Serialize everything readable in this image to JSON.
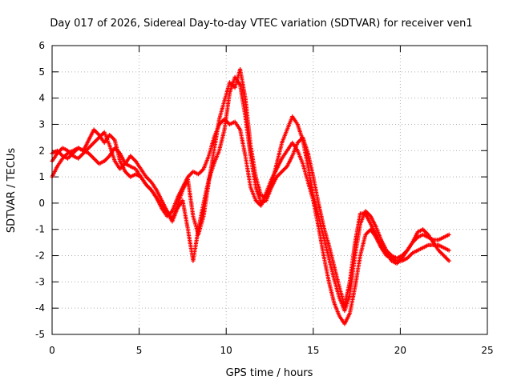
{
  "chart_data": {
    "type": "scatter",
    "title": "Day 017 of 2026, Sidereal Day-to-day VTEC variation (SDTVAR) for receiver ven1",
    "xlabel": "GPS time / hours",
    "ylabel": "SDTVAR / TECUs",
    "xlim": [
      0,
      25
    ],
    "ylim": [
      -5,
      6
    ],
    "xticks": [
      0,
      5,
      10,
      15,
      20,
      25
    ],
    "yticks": [
      -5,
      -4,
      -3,
      -2,
      -1,
      0,
      1,
      2,
      3,
      4,
      5,
      6
    ],
    "grid": true,
    "marker": "+",
    "color": "#ff0000",
    "series": [
      {
        "x": [
          0.0,
          0.3,
          0.6,
          0.9,
          1.2,
          1.5,
          1.8,
          2.1,
          2.4,
          2.7,
          3.0,
          3.3,
          3.6,
          3.9,
          4.2,
          4.5,
          4.8,
          5.1,
          5.4,
          5.7,
          6.0,
          6.3,
          6.6,
          6.9,
          7.2,
          7.5,
          7.8,
          8.1,
          8.4,
          8.7,
          9.0,
          9.3,
          9.6,
          9.9,
          10.2,
          10.5,
          10.8,
          11.1,
          11.4,
          11.7,
          12.0,
          12.3,
          12.6,
          12.9,
          13.2,
          13.5,
          13.8,
          14.1,
          14.4,
          14.7,
          15.0,
          15.3,
          15.6,
          15.9,
          16.2,
          16.5,
          16.8,
          17.1,
          17.4,
          17.7,
          18.0,
          18.3,
          18.6,
          18.9,
          19.2,
          19.5,
          19.8,
          20.1,
          20.4,
          20.7,
          21.0,
          21.3,
          21.6,
          21.9,
          22.2,
          22.5,
          22.8
        ],
        "y": [
          1.0,
          1.4,
          1.7,
          1.9,
          2.0,
          2.1,
          2.0,
          2.4,
          2.8,
          2.6,
          2.3,
          2.6,
          2.4,
          1.6,
          1.2,
          1.0,
          1.1,
          1.0,
          0.7,
          0.5,
          0.2,
          -0.2,
          -0.5,
          -0.3,
          0.2,
          0.6,
          1.0,
          1.2,
          1.1,
          1.3,
          1.8,
          2.5,
          3.0,
          3.2,
          3.0,
          3.1,
          2.8,
          1.8,
          0.6,
          0.1,
          -0.1,
          0.4,
          0.9,
          1.3,
          1.7,
          2.0,
          2.3,
          2.0,
          1.5,
          0.8,
          0.1,
          -0.9,
          -2.0,
          -3.0,
          -3.8,
          -4.3,
          -4.6,
          -4.2,
          -3.2,
          -2.0,
          -1.2,
          -1.0,
          -1.3,
          -1.7,
          -2.0,
          -2.1,
          -2.2,
          -2.2,
          -2.1,
          -1.9,
          -1.8,
          -1.7,
          -1.6,
          -1.6,
          -1.6,
          -1.7,
          -1.8
        ]
      },
      {
        "x": [
          0.0,
          0.3,
          0.6,
          0.9,
          1.2,
          1.5,
          1.8,
          2.1,
          2.4,
          2.7,
          3.0,
          3.3,
          3.6,
          3.9,
          4.2,
          4.5,
          4.8,
          5.1,
          5.4,
          5.7,
          6.0,
          6.3,
          6.6,
          6.9,
          7.2,
          7.5,
          7.8,
          8.1,
          8.4,
          8.7,
          9.0,
          9.3,
          9.6,
          9.9,
          10.2,
          10.5,
          10.8,
          11.1,
          11.4,
          11.7,
          12.0,
          12.3,
          12.6,
          12.9,
          13.2,
          13.5,
          13.8,
          14.1,
          14.4,
          14.7,
          15.0,
          15.3,
          15.6,
          15.9,
          16.2,
          16.5,
          16.8,
          17.1,
          17.4,
          17.7,
          18.0,
          18.3,
          18.6,
          18.9,
          19.2,
          19.5,
          19.8,
          20.1,
          20.4,
          20.7,
          21.0,
          21.3,
          21.6,
          21.9,
          22.2,
          22.5,
          22.8
        ],
        "y": [
          1.6,
          1.9,
          2.1,
          2.0,
          1.8,
          1.7,
          1.9,
          2.1,
          2.3,
          2.5,
          2.7,
          2.2,
          1.6,
          1.3,
          1.5,
          1.8,
          1.6,
          1.3,
          1.0,
          0.8,
          0.5,
          0.1,
          -0.3,
          -0.6,
          -0.1,
          0.5,
          0.9,
          -0.5,
          -1.2,
          -0.5,
          0.8,
          2.0,
          3.2,
          3.9,
          4.6,
          4.4,
          5.1,
          4.0,
          2.2,
          1.0,
          0.3,
          0.2,
          0.7,
          1.5,
          2.3,
          2.8,
          3.3,
          3.0,
          2.4,
          1.4,
          0.3,
          -0.5,
          -1.3,
          -2.1,
          -2.9,
          -3.6,
          -4.1,
          -3.5,
          -2.0,
          -0.8,
          -0.3,
          -0.5,
          -0.9,
          -1.4,
          -1.8,
          -2.0,
          -2.1,
          -2.0,
          -1.8,
          -1.5,
          -1.3,
          -1.2,
          -1.3,
          -1.4,
          -1.4,
          -1.3,
          -1.2
        ]
      },
      {
        "x": [
          0.0,
          0.3,
          0.6,
          0.9,
          1.2,
          1.5,
          1.8,
          2.1,
          2.4,
          2.7,
          3.0,
          3.3,
          3.6,
          3.9,
          4.2,
          4.5,
          4.8,
          5.1,
          5.4,
          5.7,
          6.0,
          6.3,
          6.6,
          6.9,
          7.2,
          7.5,
          7.8,
          8.1,
          8.4,
          8.7,
          9.0,
          9.3,
          9.6,
          9.9,
          10.2,
          10.5,
          10.8,
          11.1,
          11.4,
          11.7,
          12.0,
          12.3,
          12.6,
          12.9,
          13.2,
          13.5,
          13.8,
          14.1,
          14.4,
          14.7,
          15.0,
          15.3,
          15.6,
          15.9,
          16.2,
          16.5,
          16.8,
          17.1,
          17.4,
          17.7,
          18.0,
          18.3,
          18.6,
          18.9,
          19.2,
          19.5,
          19.8,
          20.1,
          20.4,
          20.7,
          21.0,
          21.3,
          21.6,
          21.9,
          22.2,
          22.5,
          22.8
        ],
        "y": [
          1.9,
          2.0,
          1.8,
          1.7,
          1.9,
          2.1,
          2.0,
          1.9,
          1.7,
          1.5,
          1.6,
          1.8,
          2.1,
          1.9,
          1.5,
          1.4,
          1.3,
          1.0,
          0.7,
          0.5,
          0.2,
          -0.1,
          -0.3,
          -0.7,
          -0.2,
          0.1,
          -1.0,
          -2.2,
          -1.0,
          0.0,
          0.9,
          1.5,
          2.0,
          2.8,
          4.2,
          4.8,
          4.5,
          3.3,
          1.8,
          0.6,
          0.0,
          0.1,
          0.6,
          1.0,
          1.2,
          1.4,
          1.8,
          2.3,
          2.5,
          1.9,
          1.0,
          0.0,
          -0.9,
          -1.6,
          -2.4,
          -3.2,
          -3.9,
          -3.0,
          -1.5,
          -0.4,
          -0.4,
          -0.8,
          -1.2,
          -1.6,
          -1.9,
          -2.2,
          -2.3,
          -2.1,
          -1.8,
          -1.5,
          -1.1,
          -1.0,
          -1.2,
          -1.5,
          -1.8,
          -2.0,
          -2.2
        ]
      }
    ]
  }
}
